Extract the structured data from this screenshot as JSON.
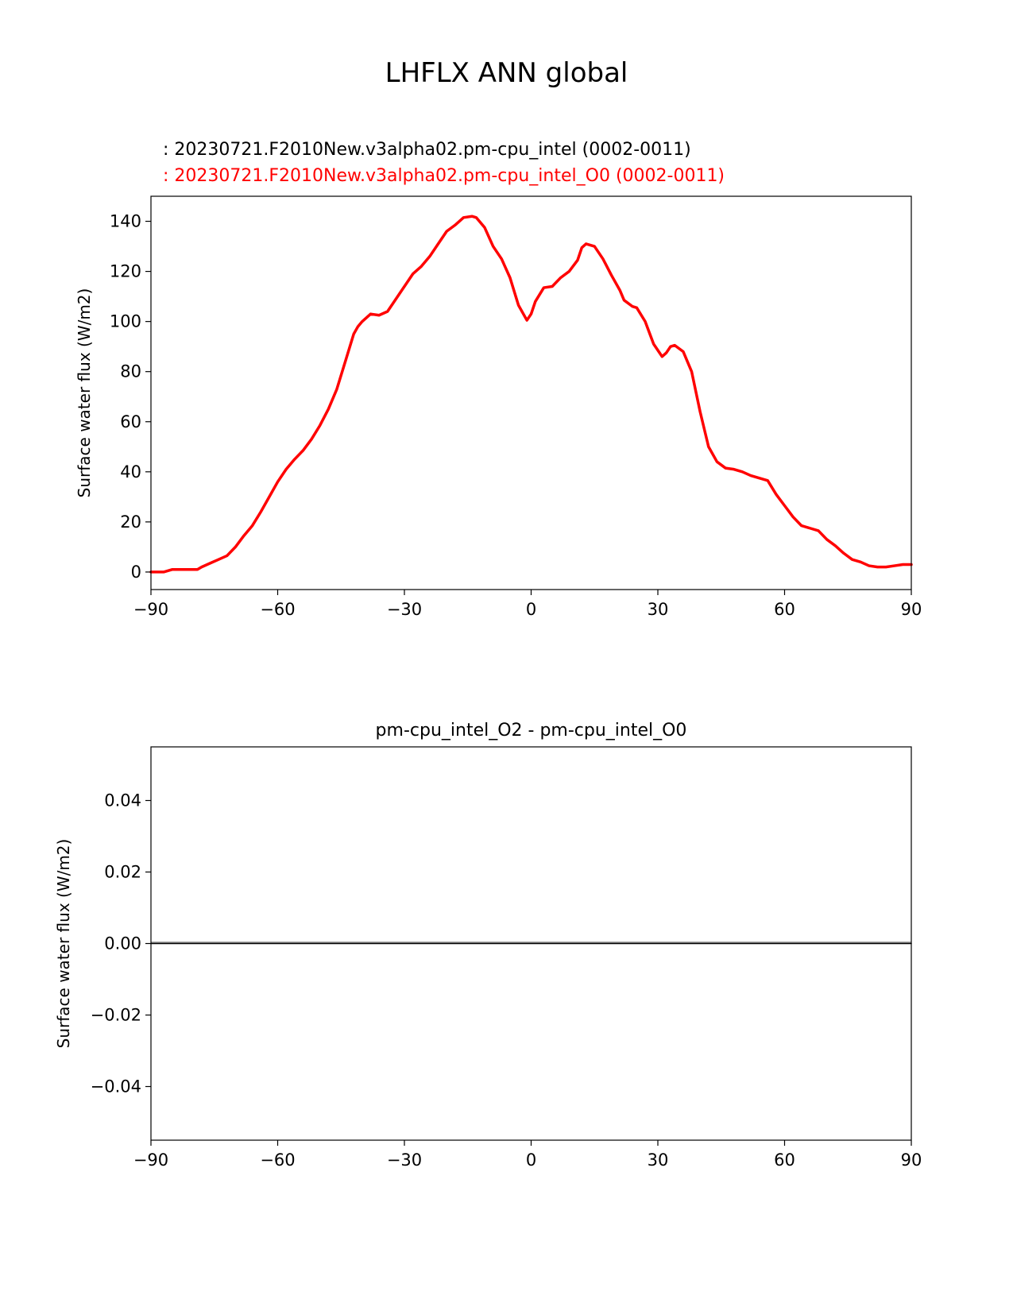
{
  "figure": {
    "title": "LHFLX ANN global",
    "legend_test": ": 20230721.F2010New.v3alpha02.pm-cpu_intel (0002-0011)",
    "legend_ref": ": 20230721.F2010New.v3alpha02.pm-cpu_intel_O0 (0002-0011)"
  },
  "colors": {
    "test": "#000000",
    "ref": "#ff0000",
    "diff": "#000000",
    "zero": "#808080"
  },
  "chart_data": [
    {
      "type": "line",
      "title": "",
      "xlabel": "",
      "ylabel": "Surface water flux (W/m2)",
      "xlim": [
        -90,
        90
      ],
      "ylim": [
        -7,
        150
      ],
      "xticks": [
        -90,
        -60,
        -30,
        0,
        30,
        60,
        90
      ],
      "xtick_labels": [
        "−90",
        "−60",
        "−30",
        "0",
        "30",
        "60",
        "90"
      ],
      "yticks": [
        0,
        20,
        40,
        60,
        80,
        100,
        120,
        140
      ],
      "ytick_labels": [
        "0",
        "20",
        "40",
        "60",
        "80",
        "100",
        "120",
        "140"
      ],
      "series": [
        {
          "color": "#ff0000",
          "x": [
            -90,
            -87,
            -85,
            -83,
            -81,
            -79,
            -78,
            -76,
            -74,
            -72,
            -70,
            -68,
            -66,
            -64,
            -62,
            -60,
            -58,
            -56,
            -54,
            -52,
            -50,
            -48,
            -46,
            -44,
            -42,
            -41,
            -40,
            -38,
            -36,
            -34,
            -32,
            -30,
            -28,
            -26,
            -24,
            -22,
            -20,
            -18,
            -16,
            -14,
            -13,
            -11,
            -9,
            -7,
            -5,
            -3,
            -1,
            0,
            1,
            3,
            5,
            7,
            9,
            11,
            12,
            13,
            15,
            17,
            19,
            21,
            22,
            24,
            25,
            27,
            29,
            31,
            32,
            33,
            34,
            36,
            38,
            40,
            42,
            44,
            46,
            48,
            50,
            52,
            54,
            56,
            58,
            60,
            62,
            64,
            66,
            68,
            70,
            72,
            74,
            76,
            78,
            80,
            82,
            84,
            86,
            88,
            90
          ],
          "y": [
            0,
            0,
            1,
            1,
            1,
            1,
            2,
            3.5,
            5,
            6.5,
            10,
            14.5,
            18.5,
            24,
            30,
            36,
            41,
            45,
            48.5,
            53,
            58.5,
            65,
            73,
            84,
            95,
            98,
            100,
            103,
            102.5,
            104,
            109,
            114,
            119,
            122,
            126,
            131,
            136,
            138.5,
            141.5,
            142,
            141.5,
            137.5,
            130,
            125,
            117.5,
            106.5,
            100.5,
            103,
            108,
            113.5,
            114,
            117.5,
            120,
            124.5,
            129.5,
            131,
            130,
            125,
            118.5,
            112.5,
            108.5,
            106,
            105.5,
            100,
            91,
            86,
            87.5,
            90,
            90.5,
            88,
            80,
            64,
            50,
            44,
            41.5,
            41,
            40,
            38.5,
            37.5,
            36.5,
            31,
            26.5,
            22,
            18.5,
            17.5,
            16.5,
            13,
            10.5,
            7.5,
            5,
            4,
            2.5,
            2,
            2,
            2.5,
            3,
            3
          ]
        }
      ]
    },
    {
      "type": "line",
      "title": "pm-cpu_intel_O2 - pm-cpu_intel_O0",
      "xlabel": "",
      "ylabel": "Surface water flux (W/m2)",
      "xlim": [
        -90,
        90
      ],
      "ylim": [
        -0.055,
        0.055
      ],
      "xticks": [
        -90,
        -60,
        -30,
        0,
        30,
        60,
        90
      ],
      "xtick_labels": [
        "−90",
        "−60",
        "−30",
        "0",
        "30",
        "60",
        "90"
      ],
      "yticks": [
        0.04,
        0.02,
        0.0,
        -0.02,
        -0.04
      ],
      "ytick_labels": [
        "0.04",
        "0.02",
        "0.00",
        "−0.02",
        "−0.04"
      ],
      "series": [
        {
          "color": "#000000",
          "x": [
            -90,
            90
          ],
          "y": [
            0.0,
            0.0
          ]
        }
      ],
      "zero_line": 0.0
    }
  ]
}
